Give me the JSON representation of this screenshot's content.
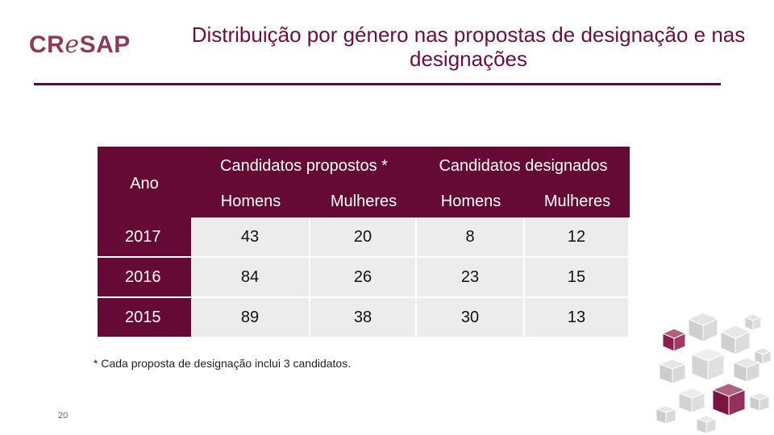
{
  "brand": {
    "logo_prefix": "CR",
    "logo_e": "e",
    "logo_suffix": "SAP"
  },
  "title": "Distribuição por género nas propostas de designação e nas designações",
  "table": {
    "year_header": "Ano",
    "group1": "Candidatos propostos *",
    "group2": "Candidatos designados",
    "sub_men": "Homens",
    "sub_women": "Mulheres",
    "rows": [
      {
        "year": "2017",
        "prop_men": "43",
        "prop_women": "20",
        "des_men": "8",
        "des_women": "12"
      },
      {
        "year": "2016",
        "prop_men": "84",
        "prop_women": "26",
        "des_men": "23",
        "des_women": "15"
      },
      {
        "year": "2015",
        "prop_men": "89",
        "prop_women": "38",
        "des_men": "30",
        "des_women": "13"
      }
    ]
  },
  "footnote": "* Cada proposta de designação inclui 3 candidatos.",
  "page_number": "20",
  "colors": {
    "brand": "#8c3a5a",
    "header_bg": "#650a34",
    "cell_bg": "#ececec"
  }
}
